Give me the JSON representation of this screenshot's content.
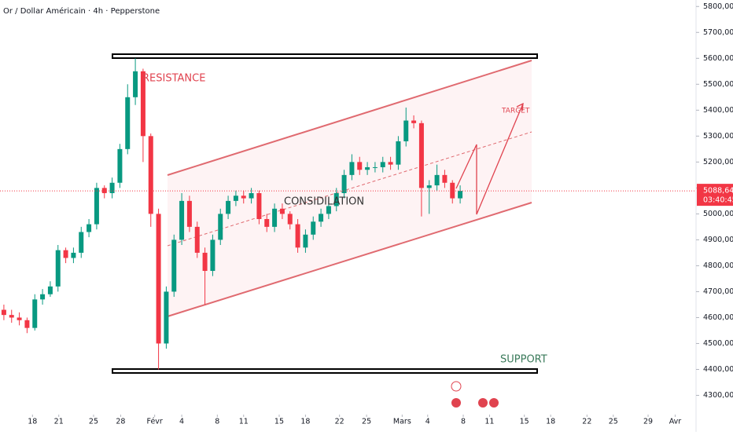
{
  "chart_data": {
    "type": "candlestick",
    "title": "Or / Dollar Américain · 4h · Pepperstone",
    "annotations": {
      "resistance": "RESISTANCE",
      "consolidation": "CONSIDILATION",
      "support": "SUPPORT",
      "target": "TARGET"
    },
    "up_color": "#089981",
    "down_color": "#f23645",
    "x": [
      0,
      1,
      2,
      3,
      4,
      5,
      6,
      7,
      8,
      9,
      10,
      11,
      12,
      13,
      14,
      15,
      16,
      17,
      18,
      19,
      20,
      21,
      22,
      23,
      24,
      25,
      26,
      27,
      28,
      29,
      30,
      31,
      32,
      33,
      34,
      35,
      36,
      37,
      38,
      39,
      40,
      41,
      42,
      43,
      44,
      45,
      46,
      47,
      48,
      49,
      50,
      51,
      52,
      53,
      54,
      55,
      56,
      57,
      58,
      59
    ],
    "open": [
      4630,
      4610,
      4600,
      4590,
      4560,
      4670,
      4690,
      4720,
      4860,
      4830,
      4850,
      4930,
      4960,
      5100,
      5080,
      5120,
      5250,
      5450,
      5550,
      5300,
      5000,
      4500,
      4700,
      4900,
      5050,
      4950,
      4850,
      4780,
      4900,
      5000,
      5050,
      5070,
      5060,
      5080,
      4980,
      4950,
      5020,
      5000,
      4960,
      4870,
      4920,
      4970,
      5000,
      5030,
      5080,
      5150,
      5200,
      5170,
      5180,
      5180,
      5200,
      5190,
      5280,
      5360,
      5350,
      5100,
      5110,
      5150,
      5120,
      5060
    ],
    "high": [
      4650,
      4630,
      4620,
      4600,
      4690,
      4710,
      4740,
      4880,
      4870,
      4870,
      4950,
      4980,
      5120,
      5110,
      5140,
      5270,
      5500,
      5600,
      5560,
      5310,
      5020,
      4720,
      4920,
      5080,
      5070,
      4970,
      4870,
      4920,
      5020,
      5070,
      5090,
      5090,
      5100,
      5090,
      5000,
      5040,
      5040,
      5010,
      4980,
      4940,
      4990,
      5020,
      5050,
      5100,
      5170,
      5230,
      5220,
      5200,
      5200,
      5220,
      5220,
      5300,
      5410,
      5380,
      5360,
      5130,
      5190,
      5170,
      5130,
      5110
    ],
    "low": [
      4590,
      4580,
      4570,
      4540,
      4550,
      4650,
      4680,
      4700,
      4810,
      4810,
      4830,
      4910,
      4940,
      5060,
      5060,
      5100,
      5230,
      5420,
      5200,
      4950,
      4400,
      4480,
      4680,
      4880,
      4930,
      4830,
      4650,
      4760,
      4880,
      4980,
      5030,
      5040,
      5040,
      4960,
      4930,
      4930,
      4980,
      4940,
      4850,
      4850,
      4900,
      4950,
      4980,
      5010,
      5060,
      5130,
      5150,
      5150,
      5160,
      5160,
      5170,
      5170,
      5260,
      5330,
      4990,
      5000,
      5090,
      5100,
      5040,
      5040
    ],
    "close": [
      4610,
      4600,
      4590,
      4560,
      4670,
      4690,
      4720,
      4860,
      4830,
      4850,
      4930,
      4960,
      5100,
      5080,
      5120,
      5250,
      5450,
      5550,
      5300,
      5000,
      4500,
      4700,
      4900,
      5050,
      4950,
      4850,
      4780,
      4900,
      5000,
      5050,
      5070,
      5060,
      5080,
      4980,
      4950,
      5020,
      5000,
      4960,
      4870,
      4920,
      4970,
      5000,
      5030,
      5080,
      5150,
      5200,
      5170,
      5180,
      5180,
      5200,
      5190,
      5280,
      5360,
      5350,
      5100,
      5110,
      5150,
      5120,
      5060,
      5088.64
    ],
    "last_price": {
      "value": 5088.64,
      "label": "5088,64"
    },
    "countdown": "03:40:45",
    "xlim": [
      -0.5,
      89.5
    ],
    "xticks": [
      {
        "value": 3.7,
        "label": "18"
      },
      {
        "value": 7.1,
        "label": "21"
      },
      {
        "value": 11.6,
        "label": "25"
      },
      {
        "value": 15.1,
        "label": "28"
      },
      {
        "value": 19.5,
        "label": "Févr"
      },
      {
        "value": 23.0,
        "label": "4"
      },
      {
        "value": 27.6,
        "label": "8"
      },
      {
        "value": 31.0,
        "label": "11"
      },
      {
        "value": 35.6,
        "label": "15"
      },
      {
        "value": 39.0,
        "label": "18"
      },
      {
        "value": 43.4,
        "label": "22"
      },
      {
        "value": 46.9,
        "label": "25"
      },
      {
        "value": 51.5,
        "label": "Mars"
      },
      {
        "value": 54.8,
        "label": "4"
      },
      {
        "value": 59.4,
        "label": "8"
      },
      {
        "value": 62.8,
        "label": "11"
      },
      {
        "value": 67.3,
        "label": "15"
      },
      {
        "value": 70.7,
        "label": "18"
      },
      {
        "value": 75.4,
        "label": "22"
      },
      {
        "value": 78.8,
        "label": "25"
      },
      {
        "value": 83.3,
        "label": "29"
      },
      {
        "value": 86.8,
        "label": "Avr"
      }
    ],
    "ylim": [
      4250,
      5825
    ],
    "yticks": [
      {
        "value": 4300,
        "label": "4300,00"
      },
      {
        "value": 4400,
        "label": "4400,00"
      },
      {
        "value": 4500,
        "label": "4500,00"
      },
      {
        "value": 4600,
        "label": "4600,00"
      },
      {
        "value": 4700,
        "label": "4700,00"
      },
      {
        "value": 4800,
        "label": "4800,00"
      },
      {
        "value": 4900,
        "label": "4900,00"
      },
      {
        "value": 5000,
        "label": "5000,00"
      },
      {
        "value": 5100,
        "label": "5100,00"
      },
      {
        "value": 5200,
        "label": "5200,00"
      },
      {
        "value": 5300,
        "label": "5300,00"
      },
      {
        "value": 5400,
        "label": "5400,00"
      },
      {
        "value": 5500,
        "label": "5500,00"
      },
      {
        "value": 5600,
        "label": "5600,00"
      },
      {
        "value": 5700,
        "label": "5700,00"
      },
      {
        "value": 5800,
        "label": "5800,00"
      }
    ]
  }
}
